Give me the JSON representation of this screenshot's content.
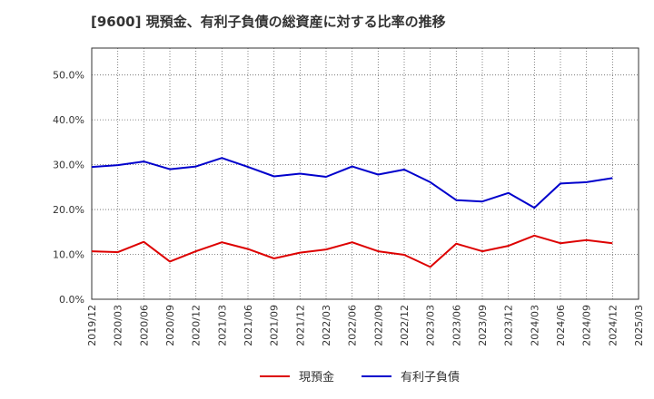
{
  "chart_data": {
    "type": "line",
    "title": "[9600]  現預金、有利子負債の総資産に対する比率の推移",
    "xlabel": "",
    "ylabel": "",
    "ylim": [
      0,
      56
    ],
    "yticks": [
      "0.0%",
      "10.0%",
      "20.0%",
      "30.0%",
      "40.0%",
      "50.0%"
    ],
    "ytick_values": [
      0,
      10,
      20,
      30,
      40,
      50
    ],
    "categories": [
      "2019/12",
      "2020/03",
      "2020/06",
      "2020/09",
      "2020/12",
      "2021/03",
      "2021/06",
      "2021/09",
      "2021/12",
      "2022/03",
      "2022/06",
      "2022/09",
      "2022/12",
      "2023/03",
      "2023/06",
      "2023/09",
      "2023/12",
      "2024/03",
      "2024/06",
      "2024/09",
      "2024/12",
      "2025/03"
    ],
    "grid": true,
    "legend_position": "bottom-center",
    "series": [
      {
        "name": "現預金",
        "color": "#dd0000",
        "values": [
          10.7,
          10.5,
          12.8,
          8.4,
          10.7,
          12.7,
          11.2,
          9.1,
          10.4,
          11.1,
          12.7,
          10.7,
          9.9,
          7.2,
          12.4,
          10.7,
          11.9,
          14.2,
          12.5,
          13.2,
          12.5,
          null
        ]
      },
      {
        "name": "有利子負債",
        "color": "#0000cc",
        "values": [
          29.5,
          29.9,
          30.7,
          29.0,
          29.6,
          31.5,
          29.5,
          27.4,
          28.0,
          27.3,
          29.6,
          27.8,
          28.9,
          26.1,
          22.1,
          21.8,
          23.7,
          20.4,
          25.8,
          26.1,
          27.0,
          null
        ]
      }
    ]
  }
}
